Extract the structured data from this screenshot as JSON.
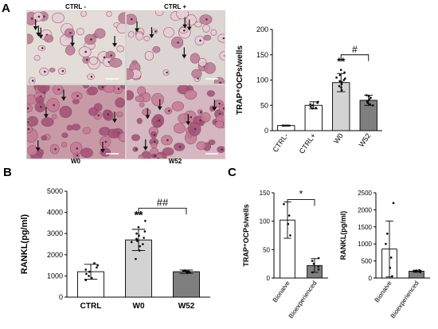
{
  "panels": {
    "a": "A",
    "b": "B",
    "c": "C"
  },
  "micrographs": {
    "top_left_caption": "CTRL -",
    "top_right_caption": "CTRL +",
    "bottom_left_caption": "W0",
    "bottom_right_caption": "W52",
    "top_tint": "#e4dcd8",
    "bottom_tint": "#c89aa8",
    "cell_color": "#b76b8c",
    "arrow_color": "#111111"
  },
  "chart_data": [
    {
      "id": "A",
      "type": "bar",
      "ylabel": "TRAP⁺OCPs/wells",
      "ylim": [
        0,
        200
      ],
      "yticks": [
        0,
        50,
        100,
        150,
        200
      ],
      "categories": [
        "CTRL-",
        "CTRL+",
        "W0",
        "W52"
      ],
      "values": [
        10,
        50,
        95,
        60
      ],
      "errors": [
        1,
        7,
        18,
        10
      ],
      "fills": [
        "#ffffff",
        "#ffffff",
        "#d3d3d3",
        "#7f7f7f"
      ],
      "points": [
        [
          10
        ],
        [
          44,
          47,
          50,
          52,
          55,
          57,
          45
        ],
        [
          80,
          88,
          92,
          96,
          100,
          105,
          110,
          115,
          85,
          98,
          103,
          120
        ],
        [
          50,
          55,
          58,
          62,
          65,
          68,
          52,
          70
        ]
      ],
      "annotations": [
        {
          "label": "**",
          "category": "W0",
          "y": 130
        },
        {
          "label": "#",
          "between": [
            "W0",
            "W52"
          ],
          "y": 150
        }
      ]
    },
    {
      "id": "B",
      "type": "bar",
      "ylabel": "RANKL(pg/ml)",
      "ylim": [
        0,
        5000
      ],
      "yticks": [
        0,
        1000,
        2000,
        3000,
        4000,
        5000
      ],
      "categories": [
        "CTRL",
        "W0",
        "W52"
      ],
      "values": [
        1200,
        2700,
        1200
      ],
      "errors": [
        350,
        500,
        80
      ],
      "fills": [
        "#ffffff",
        "#d3d3d3",
        "#7f7f7f"
      ],
      "points": [
        [
          800,
          1000,
          1100,
          1200,
          1300,
          1400,
          1500,
          1600,
          900
        ],
        [
          1800,
          2200,
          2400,
          2500,
          2600,
          2700,
          2800,
          2900,
          3000,
          3100,
          3300,
          3600,
          2650,
          2750
        ],
        [
          1150,
          1180,
          1200,
          1230,
          1250,
          1260
        ]
      ],
      "annotations": [
        {
          "label": "**",
          "category": "W0",
          "y": 3700
        },
        {
          "label": "##",
          "between": [
            "W0",
            "W52"
          ],
          "y": 4200
        }
      ]
    },
    {
      "id": "C1",
      "type": "bar",
      "ylabel": "TRAP⁺OCPs/wells",
      "ylim": [
        0,
        150
      ],
      "yticks": [
        0,
        50,
        100,
        150
      ],
      "categories": [
        "Bionaive",
        "Bioexperienced"
      ],
      "values": [
        102,
        22
      ],
      "errors": [
        32,
        12
      ],
      "fills": [
        "#ffffff",
        "#7f7f7f"
      ],
      "points": [
        [
          75,
          95,
          110,
          130
        ],
        [
          10,
          15,
          20,
          25,
          30,
          35
        ]
      ],
      "annotations": [
        {
          "label": "*",
          "between": [
            "Bionaive",
            "Bioexperienced"
          ],
          "y": 138
        }
      ]
    },
    {
      "id": "C2",
      "type": "bar",
      "ylabel": "RANKL(pg/ml)",
      "ylim": [
        0,
        2500
      ],
      "yticks": [
        0,
        500,
        1000,
        1500,
        2000,
        2500
      ],
      "categories": [
        "Bionaive",
        "Bioexperienced"
      ],
      "values": [
        850,
        200
      ],
      "errors": [
        820,
        30
      ],
      "fills": [
        "#ffffff",
        "#7f7f7f"
      ],
      "points": [
        [
          50,
          300,
          600,
          1000,
          1300,
          2200
        ],
        [
          170,
          190,
          200,
          210,
          220,
          230
        ]
      ],
      "annotations": []
    }
  ]
}
